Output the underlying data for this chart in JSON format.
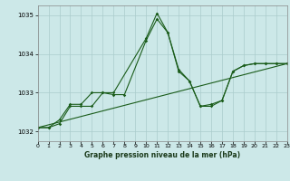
{
  "title": "Graphe pression niveau de la mer (hPa)",
  "bg_color": "#cce8e8",
  "grid_color": "#aacccc",
  "line_color": "#1a5c1a",
  "x_min": 0,
  "x_max": 23,
  "y_min": 1031.75,
  "y_max": 1035.25,
  "yticks": [
    1032,
    1033,
    1034,
    1035
  ],
  "xticks": [
    0,
    1,
    2,
    3,
    4,
    5,
    6,
    7,
    8,
    9,
    10,
    11,
    12,
    13,
    14,
    15,
    16,
    17,
    18,
    19,
    20,
    21,
    22,
    23
  ],
  "series1": {
    "x": [
      0,
      1,
      2,
      3,
      4,
      5,
      6,
      7,
      8,
      10,
      11,
      12,
      13,
      14,
      15,
      16,
      17,
      18,
      19,
      20,
      21,
      22,
      23
    ],
    "y": [
      1032.1,
      1032.1,
      1032.3,
      1032.7,
      1032.7,
      1033.0,
      1033.0,
      1032.95,
      1032.95,
      1034.35,
      1034.9,
      1034.55,
      1033.6,
      1033.3,
      1032.65,
      1032.65,
      1032.8,
      1033.55,
      1033.7,
      1033.75,
      1033.75,
      1033.75,
      1033.75
    ]
  },
  "series2": {
    "x": [
      0,
      1,
      2,
      3,
      4,
      5,
      6,
      7,
      10,
      11,
      12,
      13,
      14,
      15,
      16,
      17,
      18,
      19,
      20,
      21,
      22,
      23
    ],
    "y": [
      1032.1,
      1032.1,
      1032.2,
      1032.65,
      1032.65,
      1032.65,
      1033.0,
      1033.0,
      1034.4,
      1035.05,
      1034.55,
      1033.55,
      1033.3,
      1032.65,
      1032.7,
      1032.8,
      1033.55,
      1033.7,
      1033.75,
      1033.75,
      1033.75,
      1033.75
    ]
  },
  "series3_linear": {
    "x": [
      0,
      23
    ],
    "y": [
      1032.1,
      1033.75
    ]
  }
}
